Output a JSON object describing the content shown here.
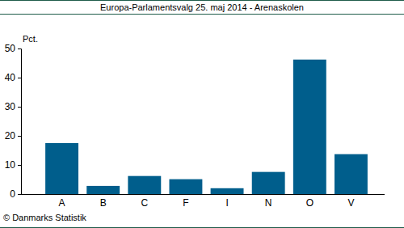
{
  "chart_data": {
    "type": "bar",
    "title": "Europa-Parlamentsvalg 25. maj 2014 - Arenaskolen",
    "ylabel": "Pct.",
    "annotation": "© Danmarks Statistik",
    "categories": [
      "A",
      "B",
      "C",
      "F",
      "I",
      "N",
      "O",
      "V"
    ],
    "values": [
      17.5,
      2.8,
      6.2,
      5.1,
      2.0,
      7.6,
      46.2,
      13.7
    ],
    "color": "#005e8c",
    "ylim": [
      0,
      50
    ],
    "yticks": [
      0,
      10,
      20,
      30,
      40,
      50
    ],
    "grid": false
  }
}
